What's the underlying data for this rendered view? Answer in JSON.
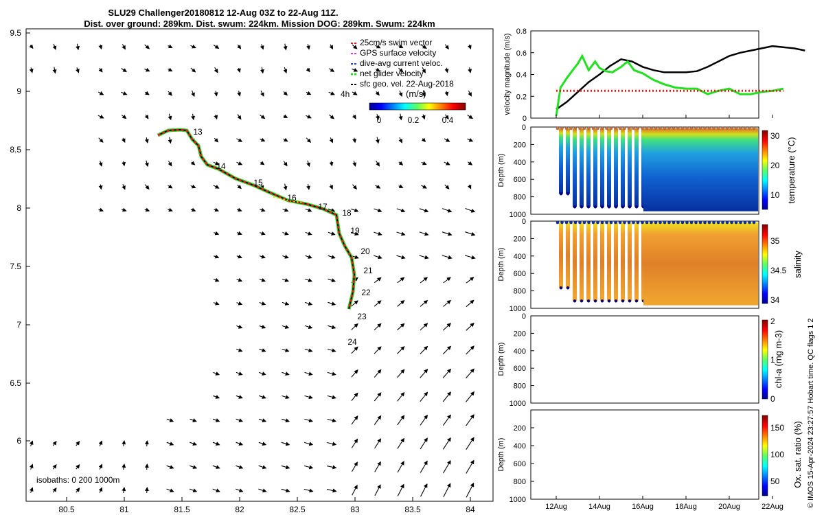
{
  "title": {
    "line1": "SLU29 Challenger20180812 12-Aug 03Z to 22-Aug 11Z.",
    "line2": "Dist. over ground: 289km. Dist. swum: 224km. Mission DOG: 289km. Swum: 224km"
  },
  "map": {
    "x_ticks": [
      "80.5",
      "81",
      "81.5",
      "82",
      "82.5",
      "83",
      "83.5",
      "84"
    ],
    "y_ticks": [
      "9.5",
      "9",
      "8.5",
      "8",
      "7.5",
      "7",
      "6.5",
      "6"
    ],
    "legend": [
      {
        "label": "25cm/s swim vector",
        "color": "#e02020"
      },
      {
        "label": "GPS surface velocity",
        "color": "#d040d0"
      },
      {
        "label": "dive-avg current veloc.",
        "color": "#2040e0"
      },
      {
        "label": "net glider velocity",
        "color": "#20e020"
      },
      {
        "label": "sfc geo. vel. 22-Aug-2018",
        "color": "#000000"
      }
    ],
    "four_h_label": "4h",
    "colorbar_label": "(m/s)",
    "colorbar_ticks": [
      "0",
      "0.2",
      "0.4"
    ],
    "isobaths_label": "isobaths: 0   200  1000m",
    "day_labels": [
      "13",
      "14",
      "15",
      "16",
      "17",
      "18",
      "19",
      "20",
      "21",
      "22",
      "23",
      "24"
    ]
  },
  "side_text": "© IMOS 15-Apr-2024 23:27:57 Hobart time. QC flags 1  2",
  "chart_data": [
    {
      "type": "line",
      "title": "",
      "ylabel": "velocity magnitude (m/s)",
      "ylim": [
        0,
        0.8
      ],
      "y_ticks": [
        "0",
        "0.2",
        "0.4",
        "0.6",
        "0.8"
      ],
      "series": [
        {
          "name": "surface velocity",
          "color": "#000000",
          "x": [
            12.0,
            12.5,
            13.0,
            13.5,
            14.0,
            14.5,
            15.0,
            15.5,
            16.0,
            16.5,
            17.0,
            17.5,
            18.0,
            18.5,
            19.0,
            19.5,
            20.0,
            20.5,
            21.0,
            21.5,
            22.0,
            22.5,
            23.0,
            23.5
          ],
          "y": [
            0.08,
            0.15,
            0.24,
            0.33,
            0.4,
            0.48,
            0.54,
            0.52,
            0.47,
            0.44,
            0.42,
            0.42,
            0.42,
            0.43,
            0.47,
            0.52,
            0.57,
            0.6,
            0.62,
            0.64,
            0.66,
            0.65,
            0.64,
            0.62
          ]
        },
        {
          "name": "net glider velocity",
          "color": "#20e020",
          "x": [
            12.0,
            12.2,
            12.5,
            12.8,
            13.0,
            13.2,
            13.5,
            13.8,
            14.0,
            14.3,
            14.6,
            15.0,
            15.3,
            15.6,
            16.0,
            16.5,
            17.0,
            17.5,
            18.0,
            18.5,
            19.0,
            19.5,
            20.0,
            20.5,
            21.0,
            21.5,
            22.0,
            22.5
          ],
          "y": [
            0.02,
            0.28,
            0.37,
            0.45,
            0.5,
            0.57,
            0.44,
            0.52,
            0.46,
            0.43,
            0.42,
            0.47,
            0.52,
            0.44,
            0.41,
            0.35,
            0.31,
            0.28,
            0.27,
            0.27,
            0.22,
            0.25,
            0.27,
            0.22,
            0.22,
            0.24,
            0.25,
            0.27
          ]
        },
        {
          "name": "swim vector",
          "color": "#e02020",
          "dashed": true,
          "x": [
            12.0,
            22.5
          ],
          "y": [
            0.25,
            0.25
          ]
        }
      ],
      "x_ticks": [
        "12Aug",
        "14Aug",
        "16Aug",
        "18Aug",
        "20Aug",
        "22Aug"
      ]
    },
    {
      "type": "heatmap",
      "ylabel": "Depth (m)",
      "colorbar_label": "temperature (°C)",
      "colorbar_ticks": [
        "30",
        "20",
        "10"
      ],
      "y_ticks": [
        "0",
        "200",
        "400",
        "600",
        "800",
        "1000"
      ]
    },
    {
      "type": "heatmap",
      "ylabel": "Depth (m)",
      "colorbar_label": "salinity",
      "colorbar_ticks": [
        "35",
        "34.5",
        "34"
      ],
      "y_ticks": [
        "0",
        "200",
        "400",
        "600",
        "800",
        "1000"
      ]
    },
    {
      "type": "heatmap",
      "ylabel": "Depth (m)",
      "colorbar_label": "chl-a (mg m-3)",
      "colorbar_ticks": [
        "2",
        "1",
        "0"
      ],
      "y_ticks": [
        "0",
        "200",
        "400",
        "600",
        "800",
        "1000"
      ]
    },
    {
      "type": "heatmap",
      "ylabel": "Depth (m)",
      "colorbar_label": "Ox. sat. ratio (%)",
      "colorbar_ticks": [
        "150",
        "100",
        "50"
      ],
      "y_ticks": [
        "200",
        "400",
        "600",
        "800",
        "1000"
      ],
      "x_ticks": [
        "12Aug",
        "14Aug",
        "16Aug",
        "18Aug",
        "20Aug",
        "22Aug"
      ]
    }
  ]
}
